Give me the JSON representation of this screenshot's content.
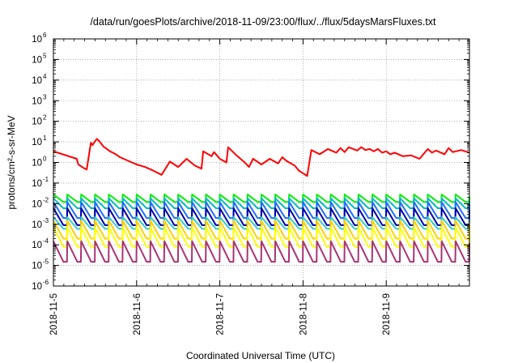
{
  "chart_data": {
    "type": "line",
    "title": "/data/run/goesPlots/archive/2018-11-09/23:00/flux/../flux/5daysMarsFluxes.txt",
    "xlabel": "Coordinated Universal Time (UTC)",
    "ylabel": "protons/cm²-s-sr-MeV",
    "yscale": "log",
    "ylim": [
      1e-06,
      1000000.0
    ],
    "xlim": [
      "2018-11-05",
      "2018-11-10"
    ],
    "x_tick_labels": [
      "2018-11-5",
      "2018-11-6",
      "2018-11-7",
      "2018-11-8",
      "2018-11-9"
    ],
    "y_tick_labels": [
      {
        "base": "10",
        "exp": "-6"
      },
      {
        "base": "10",
        "exp": "-5"
      },
      {
        "base": "10",
        "exp": "-4"
      },
      {
        "base": "10",
        "exp": "-3"
      },
      {
        "base": "10",
        "exp": "-2"
      },
      {
        "base": "10",
        "exp": "-1"
      },
      {
        "base": "10",
        "exp": "0"
      },
      {
        "base": "10",
        "exp": "1"
      },
      {
        "base": "10",
        "exp": "2"
      },
      {
        "base": "10",
        "exp": "3"
      },
      {
        "base": "10",
        "exp": "4"
      },
      {
        "base": "10",
        "exp": "5"
      },
      {
        "base": "10",
        "exp": "6"
      }
    ],
    "grid": true,
    "series": [
      {
        "color": "#ff0000",
        "style": "sawtooth-irregular",
        "x": [
          0.0,
          0.28,
          0.3,
          0.36,
          0.4,
          0.45,
          0.47,
          0.52,
          0.55,
          0.6,
          0.68,
          0.75,
          0.8,
          0.9,
          1.0,
          1.1,
          1.2,
          1.3,
          1.4,
          1.5,
          1.6,
          1.7,
          1.78,
          1.8,
          1.9,
          1.93,
          2.0,
          2.08,
          2.1,
          2.2,
          2.3,
          2.35,
          2.4,
          2.5,
          2.6,
          2.7,
          2.75,
          2.8,
          2.9,
          2.95,
          3.0,
          3.05,
          3.1,
          3.2,
          3.3,
          3.4,
          3.45,
          3.5,
          3.55,
          3.65,
          3.7,
          3.75,
          3.8,
          3.85,
          3.9,
          3.95,
          4.0,
          4.05,
          4.1,
          4.2,
          4.3,
          4.4,
          4.5,
          4.55,
          4.6,
          4.7,
          4.75,
          4.8,
          4.9,
          5.0
        ],
        "y": [
          3.5,
          1.5,
          0.8,
          0.55,
          0.45,
          9,
          7,
          14,
          11,
          6,
          3.5,
          2.5,
          1.8,
          1.2,
          0.8,
          0.6,
          0.4,
          0.25,
          1.1,
          0.6,
          1.5,
          0.7,
          0.5,
          3.5,
          2.0,
          3.2,
          1.5,
          1.0,
          5.5,
          2.2,
          1.0,
          0.6,
          1.5,
          0.8,
          1.5,
          0.9,
          1.8,
          1.2,
          0.7,
          0.4,
          0.3,
          0.22,
          4.0,
          2.5,
          4.5,
          3.0,
          5.0,
          3.2,
          5.5,
          3.8,
          5.5,
          4.0,
          4.5,
          3.5,
          4.5,
          3.0,
          3.5,
          2.5,
          3.0,
          2.0,
          2.2,
          1.5,
          4.5,
          3.0,
          3.8,
          2.5,
          5.0,
          3.2,
          4.0,
          3.0
        ]
      },
      {
        "color": "#00ee00",
        "style": "sawtooth",
        "peaks_per_day": 6,
        "peak": 0.028,
        "trough": 0.012
      },
      {
        "color": "#00bbbb",
        "style": "sawtooth",
        "peaks_per_day": 6,
        "peak": 0.018,
        "trough": 0.006
      },
      {
        "color": "#1e6fff",
        "style": "sawtooth",
        "peaks_per_day": 6,
        "peak": 0.012,
        "trough": 0.002
      },
      {
        "color": "#0000aa",
        "style": "sawtooth",
        "peaks_per_day": 6,
        "peak": 0.006,
        "trough": 0.0009
      },
      {
        "color": "#33cccc",
        "style": "sawtooth",
        "peaks_per_day": 6,
        "peak": 0.0022,
        "trough": 0.0006
      },
      {
        "color": "#ffd000",
        "style": "sawtooth",
        "peaks_per_day": 6,
        "peak": 0.0015,
        "trough": 0.0002
      },
      {
        "color": "#ffff00",
        "style": "sawtooth",
        "peaks_per_day": 6,
        "peak": 0.0007,
        "trough": 8e-05
      },
      {
        "color": "#aa3377",
        "style": "sawtooth",
        "peaks_per_day": 6,
        "peak": 0.00015,
        "trough": 1.5e-05
      }
    ]
  }
}
